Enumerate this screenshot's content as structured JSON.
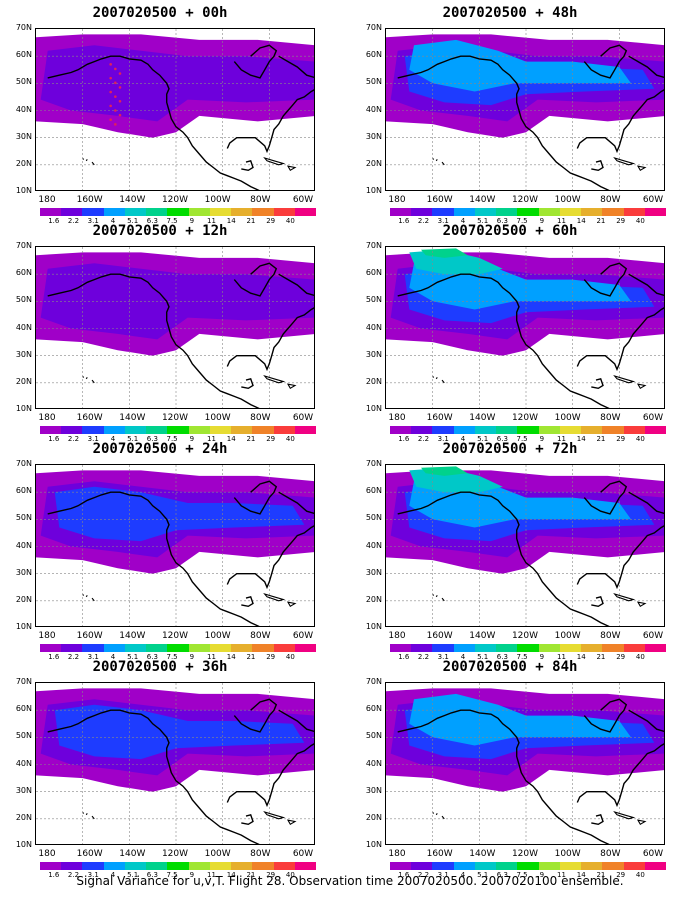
{
  "panels": [
    {
      "title": "2007020500 + 00h",
      "level": 0
    },
    {
      "title": "2007020500 + 48h",
      "level": 2
    },
    {
      "title": "2007020500 + 12h",
      "level": 0
    },
    {
      "title": "2007020500 + 60h",
      "level": 3
    },
    {
      "title": "2007020500 + 24h",
      "level": 1
    },
    {
      "title": "2007020500 + 72h",
      "level": 3
    },
    {
      "title": "2007020500 + 36h",
      "level": 1
    },
    {
      "title": "2007020500 + 84h",
      "level": 2
    }
  ],
  "lat_labels": [
    "70N",
    "60N",
    "50N",
    "40N",
    "30N",
    "20N",
    "10N"
  ],
  "lon_labels": [
    "180",
    "160W",
    "140W",
    "120W",
    "100W",
    "80W",
    "60W"
  ],
  "colorbar": {
    "labels": [
      "1.6",
      "2.2",
      "3.1",
      "4",
      "5.1",
      "6.3",
      "7.5",
      "9",
      "11",
      "14",
      "21",
      "29",
      "40"
    ],
    "colors": [
      "#a000c8",
      "#6e00dc",
      "#1e3cff",
      "#00a0ff",
      "#00c8c8",
      "#00d28c",
      "#00dc00",
      "#a0e632",
      "#e6dc32",
      "#e6af2d",
      "#f08228",
      "#fa3c3c",
      "#f00082"
    ]
  },
  "footer": "Signal Variance for u,v,T. Flight 28. Observation time 2007020500. 2007020100 ensemble."
}
